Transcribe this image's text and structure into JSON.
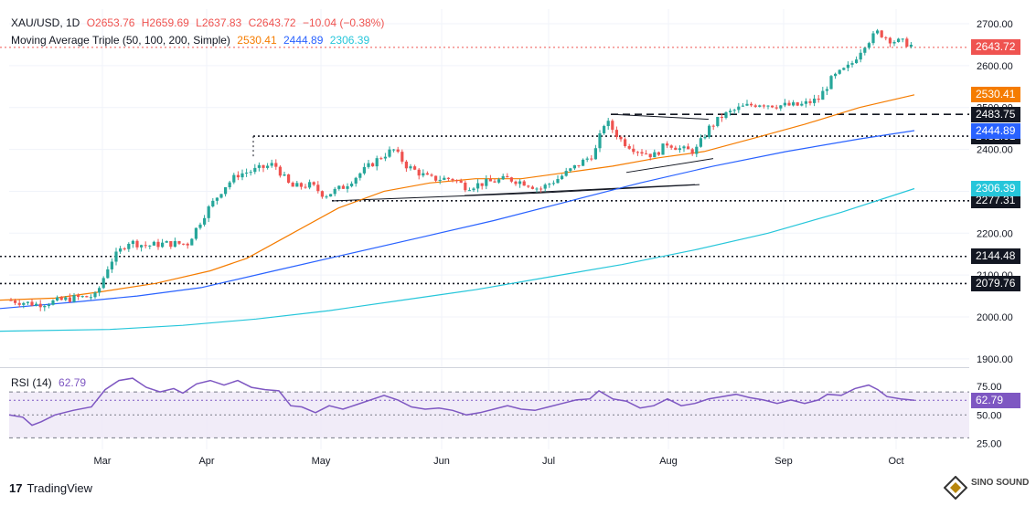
{
  "header": {
    "symbol": "XAU/USD, 1D",
    "open": "O2653.76",
    "high": "H2659.69",
    "low": "L2637.83",
    "close": "C2643.72",
    "change": "−10.04 (−0.38%)",
    "ma_label": "Moving Average Triple (50, 100, 200, Simple)",
    "ma50": "2530.41",
    "ma100": "2444.89",
    "ma200": "2306.39",
    "rsi_label": "RSI (14)",
    "rsi_value": "62.79"
  },
  "colors": {
    "up": "#26a69a",
    "down": "#ef5350",
    "ma50": "#f57c00",
    "ma100": "#2962ff",
    "ma200": "#26c6da",
    "rsi": "#7e57c2",
    "grid": "#f0f3fa",
    "text": "#131722"
  },
  "footer": {
    "brand": "TradingView",
    "watermark": "SINO SOUND"
  },
  "chart_data": [
    {
      "type": "candlestick",
      "title": "XAU/USD, 1D",
      "x_labels": [
        "Mar",
        "Apr",
        "May",
        "Jun",
        "Jul",
        "Aug",
        "Sep",
        "Oct"
      ],
      "y_ticks": [
        1900,
        2000,
        2100,
        2200,
        2300,
        2400,
        2500,
        2600,
        2700
      ],
      "ylim": [
        1880,
        2735
      ],
      "price_levels": [
        {
          "label": "2643.72",
          "value": 2643.72,
          "style": "dotted",
          "color": "#ef5350"
        },
        {
          "label": "2483.75",
          "value": 2483.75,
          "style": "dashed",
          "color": "#131722"
        },
        {
          "label": "2431.61",
          "value": 2431.61,
          "style": "dotted",
          "color": "#131722"
        },
        {
          "label": "2277.31",
          "value": 2277.31,
          "style": "dotted",
          "color": "#131722"
        },
        {
          "label": "2144.48",
          "value": 2144.48,
          "style": "dotted",
          "color": "#131722"
        },
        {
          "label": "2079.76",
          "value": 2079.76,
          "style": "dotted",
          "color": "#131722"
        }
      ],
      "series": [
        {
          "name": "SMA 50",
          "value_label": "2530.41",
          "color": "#f57c00",
          "points": [
            [
              0,
              2040
            ],
            [
              60,
              2045
            ],
            [
              110,
              2060
            ],
            [
              170,
              2080
            ],
            [
              230,
              2110
            ],
            [
              270,
              2140
            ],
            [
              320,
              2200
            ],
            [
              370,
              2260
            ],
            [
              420,
              2300
            ],
            [
              470,
              2320
            ],
            [
              520,
              2330
            ],
            [
              570,
              2330
            ],
            [
              620,
              2345
            ],
            [
              670,
              2360
            ],
            [
              720,
              2380
            ],
            [
              770,
              2395
            ],
            [
              830,
              2430
            ],
            [
              880,
              2460
            ],
            [
              940,
              2500
            ],
            [
              1000,
              2530.41
            ]
          ]
        },
        {
          "name": "SMA 100",
          "value_label": "2444.89",
          "color": "#2962ff",
          "points": [
            [
              0,
              2020
            ],
            [
              80,
              2035
            ],
            [
              150,
              2050
            ],
            [
              220,
              2070
            ],
            [
              300,
              2110
            ],
            [
              380,
              2150
            ],
            [
              460,
              2190
            ],
            [
              540,
              2230
            ],
            [
              620,
              2275
            ],
            [
              700,
              2320
            ],
            [
              780,
              2360
            ],
            [
              860,
              2395
            ],
            [
              940,
              2425
            ],
            [
              1000,
              2444.89
            ]
          ]
        },
        {
          "name": "SMA 200",
          "value_label": "2306.39",
          "color": "#26c6da",
          "points": [
            [
              0,
              1966
            ],
            [
              120,
              1970
            ],
            [
              200,
              1980
            ],
            [
              280,
              1995
            ],
            [
              360,
              2015
            ],
            [
              440,
              2040
            ],
            [
              520,
              2065
            ],
            [
              600,
              2095
            ],
            [
              680,
              2125
            ],
            [
              760,
              2160
            ],
            [
              840,
              2200
            ],
            [
              920,
              2250
            ],
            [
              1000,
              2306.39
            ]
          ]
        }
      ]
    },
    {
      "type": "line",
      "title": "RSI (14)",
      "value_label": "62.79",
      "y_ticks": [
        25,
        50,
        75
      ],
      "ylim": [
        20,
        90
      ],
      "band": [
        30,
        70
      ],
      "series": [
        {
          "name": "RSI",
          "color": "#7e57c2",
          "points": [
            [
              10,
              50
            ],
            [
              25,
              48
            ],
            [
              35,
              41
            ],
            [
              45,
              44
            ],
            [
              60,
              50
            ],
            [
              80,
              54
            ],
            [
              100,
              57
            ],
            [
              115,
              72
            ],
            [
              130,
              80
            ],
            [
              145,
              82
            ],
            [
              160,
              74
            ],
            [
              175,
              70
            ],
            [
              190,
              73
            ],
            [
              200,
              69
            ],
            [
              215,
              77
            ],
            [
              230,
              80
            ],
            [
              245,
              76
            ],
            [
              260,
              80
            ],
            [
              275,
              74
            ],
            [
              290,
              72
            ],
            [
              305,
              71
            ],
            [
              318,
              58
            ],
            [
              330,
              57
            ],
            [
              345,
              52
            ],
            [
              360,
              58
            ],
            [
              375,
              55
            ],
            [
              390,
              59
            ],
            [
              405,
              63
            ],
            [
              420,
              67
            ],
            [
              435,
              63
            ],
            [
              450,
              57
            ],
            [
              465,
              55
            ],
            [
              480,
              56
            ],
            [
              495,
              54
            ],
            [
              510,
              50
            ],
            [
              525,
              52
            ],
            [
              540,
              55
            ],
            [
              555,
              58
            ],
            [
              570,
              55
            ],
            [
              585,
              54
            ],
            [
              600,
              57
            ],
            [
              615,
              60
            ],
            [
              630,
              63
            ],
            [
              645,
              64
            ],
            [
              655,
              71
            ],
            [
              670,
              64
            ],
            [
              685,
              62
            ],
            [
              700,
              56
            ],
            [
              715,
              58
            ],
            [
              730,
              64
            ],
            [
              745,
              58
            ],
            [
              760,
              60
            ],
            [
              775,
              64
            ],
            [
              790,
              66
            ],
            [
              805,
              68
            ],
            [
              820,
              65
            ],
            [
              835,
              63
            ],
            [
              850,
              60
            ],
            [
              865,
              63
            ],
            [
              880,
              60
            ],
            [
              895,
              63
            ],
            [
              905,
              68
            ],
            [
              920,
              67
            ],
            [
              935,
              73
            ],
            [
              950,
              76
            ],
            [
              960,
              72
            ],
            [
              970,
              66
            ],
            [
              985,
              64
            ],
            [
              1000,
              62.79
            ]
          ]
        }
      ]
    }
  ]
}
